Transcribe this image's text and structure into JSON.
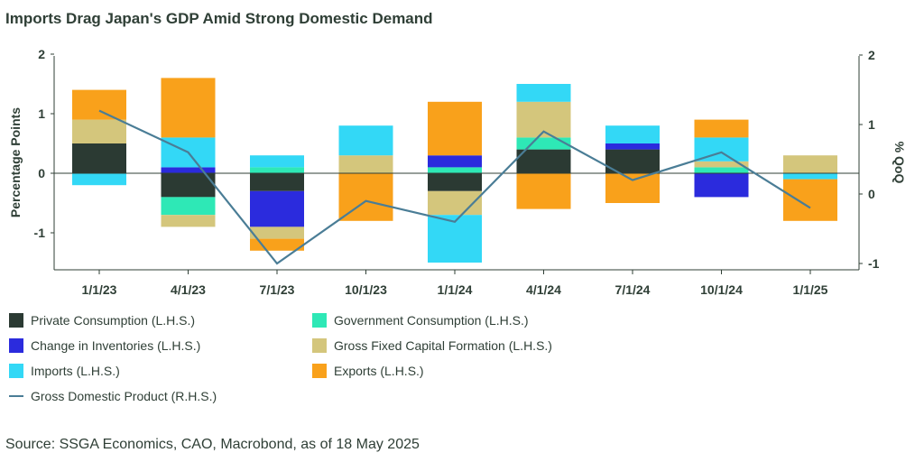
{
  "colors": {
    "private_consumption": "#2b3a33",
    "government_consumption": "#2ee8b6",
    "change_in_inventories": "#2b2bdd",
    "gross_fixed_capital_formation": "#d4c67c",
    "imports": "#33d8f6",
    "exports": "#f9a11b",
    "gdp_line": "#4a7d96",
    "axis": "#2f3f36"
  },
  "chart_data": {
    "type": "bar",
    "stacked": true,
    "title": "Imports Drag Japan's GDP Amid Strong Domestic Demand",
    "ylabel_left": "Percentage Points",
    "ylabel_right": "% QoQ",
    "ylim_left": [
      -1.65,
      2
    ],
    "ylim_right": [
      -1.0,
      1.95
    ],
    "left_ticks": [
      "2",
      "1",
      "0",
      "-1"
    ],
    "right_ticks": [
      "2",
      "1",
      "0",
      "-1"
    ],
    "categories": [
      "1/1/23",
      "4/1/23",
      "7/1/23",
      "10/1/23",
      "1/1/24",
      "4/1/24",
      "7/1/24",
      "10/1/24",
      "1/1/25"
    ],
    "series": [
      {
        "key": "private_consumption",
        "name": "Private Consumption (L.H.S.)",
        "axis": "left",
        "type": "bar",
        "values": [
          0.5,
          -0.4,
          -0.3,
          0.0,
          -0.3,
          0.4,
          0.4,
          0.0,
          0.0
        ]
      },
      {
        "key": "government_consumption",
        "name": "Government Consumption (L.H.S.)",
        "axis": "left",
        "type": "bar",
        "values": [
          0.0,
          -0.3,
          0.1,
          0.0,
          0.1,
          0.2,
          0.0,
          0.1,
          0.0
        ]
      },
      {
        "key": "change_in_inventories",
        "name": "Change in Inventories (L.H.S.)",
        "axis": "left",
        "type": "bar",
        "values": [
          0.0,
          0.1,
          -0.6,
          0.0,
          0.2,
          0.0,
          0.1,
          -0.4,
          0.0
        ]
      },
      {
        "key": "gross_fixed_capital_formation",
        "name": "Gross Fixed Capital Formation (L.H.S.)",
        "axis": "left",
        "type": "bar",
        "values": [
          0.4,
          -0.2,
          -0.2,
          0.3,
          -0.4,
          0.6,
          0.0,
          0.1,
          0.3
        ]
      },
      {
        "key": "imports",
        "name": "Imports (L.H.S.)",
        "axis": "left",
        "type": "bar",
        "values": [
          -0.2,
          0.5,
          0.2,
          0.5,
          -0.8,
          0.3,
          0.3,
          0.4,
          -0.1
        ]
      },
      {
        "key": "exports",
        "name": "Exports (L.H.S.)",
        "axis": "left",
        "type": "bar",
        "values": [
          0.5,
          1.0,
          -0.2,
          -0.8,
          0.9,
          -0.6,
          -0.5,
          0.3,
          -0.7
        ]
      },
      {
        "key": "gdp_line",
        "name": "Gross Domestic Product (R.H.S.)",
        "axis": "right",
        "type": "line",
        "values": [
          1.2,
          0.6,
          -1.0,
          -0.1,
          -0.4,
          0.9,
          0.2,
          0.6,
          -0.2
        ]
      }
    ],
    "legend_position": "bottom",
    "grid": false
  },
  "source": "Source: SSGA Economics, CAO, Macrobond, as of 18 May 2025"
}
